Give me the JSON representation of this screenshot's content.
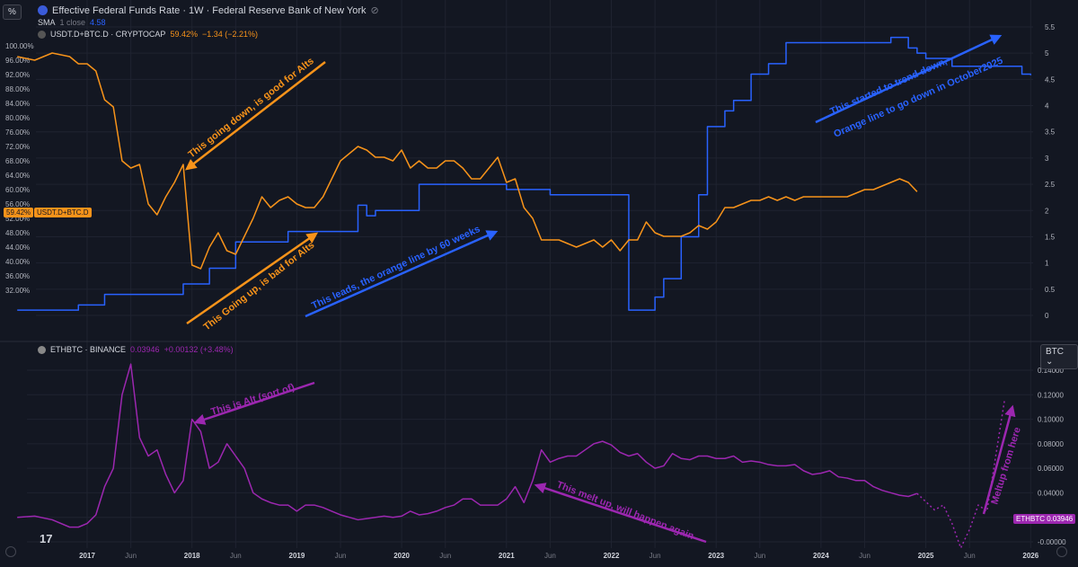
{
  "toolbar": {
    "scale_label": "%",
    "currency_label": "BTC"
  },
  "header": {
    "title": "Effective Federal Funds Rate · 1W · Federal Reserve Bank of New York",
    "sma_label": "SMA",
    "sma_params": "1 close",
    "sma_value": "4.58",
    "dominance_name": "USDT.D+BTC.D · CRYPTOCAP",
    "dominance_value": "59.42%",
    "dominance_change": "−1.34 (−2.21%)",
    "ethbtc_name": "ETHBTC · BINANCE",
    "ethbtc_value": "0.03946",
    "ethbtc_change": "+0.00132 (+3.48%)"
  },
  "badges": {
    "dominance_pct": "59.42%",
    "dominance_symbol": "USDT.D+BTC.D",
    "ethbtc": "ETHBTC 0.03946"
  },
  "colors": {
    "bg": "#131722",
    "orange": "#f7931a",
    "blue": "#2962ff",
    "purple": "#9c27b0",
    "grid": "#1f2330"
  },
  "chart_data": [
    {
      "type": "line",
      "title": "Effective Federal Funds Rate · 1W · Federal Reserve Bank of New York",
      "series": [
        {
          "name": "USDT.D+BTC.D · CRYPTOCAP",
          "axis": "left",
          "x": [
            "2016-05",
            "2016-07",
            "2016-09",
            "2016-11",
            "2016-12",
            "2017-01",
            "2017-02",
            "2017-03",
            "2017-04",
            "2017-05",
            "2017-06",
            "2017-07",
            "2017-08",
            "2017-09",
            "2017-10",
            "2017-11",
            "2017-12",
            "2018-01",
            "2018-02",
            "2018-03",
            "2018-04",
            "2018-05",
            "2018-06",
            "2018-07",
            "2018-08",
            "2018-09",
            "2018-10",
            "2018-11",
            "2018-12",
            "2019-01",
            "2019-02",
            "2019-03",
            "2019-04",
            "2019-05",
            "2019-06",
            "2019-07",
            "2019-08",
            "2019-09",
            "2019-10",
            "2019-11",
            "2019-12",
            "2020-01",
            "2020-02",
            "2020-03",
            "2020-04",
            "2020-05",
            "2020-06",
            "2020-07",
            "2020-08",
            "2020-09",
            "2020-10",
            "2020-11",
            "2020-12",
            "2021-01",
            "2021-02",
            "2021-03",
            "2021-04",
            "2021-05",
            "2021-06",
            "2021-07",
            "2021-08",
            "2021-09",
            "2021-10",
            "2021-11",
            "2021-12",
            "2022-01",
            "2022-02",
            "2022-03",
            "2022-04",
            "2022-05",
            "2022-06",
            "2022-07",
            "2022-08",
            "2022-09",
            "2022-10",
            "2022-11",
            "2022-12",
            "2023-01",
            "2023-02",
            "2023-03",
            "2023-04",
            "2023-05",
            "2023-06",
            "2023-07",
            "2023-08",
            "2023-09",
            "2023-10",
            "2023-11",
            "2023-12",
            "2024-01",
            "2024-02",
            "2024-03",
            "2024-04",
            "2024-05",
            "2024-06",
            "2024-07",
            "2024-08",
            "2024-09",
            "2024-10",
            "2024-11",
            "2024-12"
          ],
          "values": [
            97,
            96,
            98,
            97,
            95,
            95,
            93,
            85,
            83,
            68,
            66,
            67,
            56,
            53,
            58,
            62,
            67,
            39,
            38,
            44,
            48,
            43,
            42,
            47,
            52,
            58,
            55,
            57,
            58,
            56,
            55,
            55,
            58,
            63,
            68,
            70,
            72,
            71,
            69,
            69,
            68,
            71,
            66,
            68,
            66,
            66,
            68,
            68,
            66,
            63,
            63,
            66,
            69,
            62,
            63,
            55,
            52,
            46,
            46,
            46,
            45,
            44,
            45,
            46,
            44,
            46,
            43,
            46,
            46,
            51,
            48,
            47,
            47,
            47,
            48,
            50,
            49,
            51,
            55,
            55,
            56,
            57,
            57,
            58,
            57,
            58,
            57,
            58,
            58,
            58,
            58,
            58,
            58,
            59,
            60,
            60,
            61,
            62,
            63,
            62,
            59.42
          ]
        },
        {
          "name": "SMA",
          "axis": "right",
          "x": [
            "2016-05",
            "2016-12",
            "2017-03",
            "2017-06",
            "2017-12",
            "2018-03",
            "2018-06",
            "2018-09",
            "2018-12",
            "2019-08",
            "2019-09",
            "2019-10",
            "2020-03",
            "2020-03",
            "2021-01",
            "2021-06",
            "2022-03",
            "2022-05",
            "2022-06",
            "2022-07",
            "2022-09",
            "2022-11",
            "2022-12",
            "2023-02",
            "2023-03",
            "2023-05",
            "2023-07",
            "2023-09",
            "2024-09",
            "2024-11",
            "2024-12",
            "2025-01",
            "2025-04",
            "2025-12",
            "2026-01"
          ],
          "values": [
            0.1,
            0.2,
            0.4,
            0.4,
            0.6,
            0.9,
            1.4,
            1.4,
            1.6,
            2.1,
            1.9,
            2.0,
            2.3,
            2.5,
            2.4,
            2.3,
            0.1,
            0.1,
            0.35,
            0.7,
            1.5,
            2.3,
            3.6,
            3.9,
            4.1,
            4.6,
            4.8,
            5.2,
            5.3,
            5.1,
            5.0,
            4.9,
            4.75,
            4.6,
            4.58
          ]
        }
      ],
      "ylim_left": [
        32,
        100
      ],
      "ylim_right": [
        0,
        5.5
      ],
      "annotations": [
        "This going down, is good for Alts",
        "This Going up, is bad for Alts",
        "This leads,  the orange line by 60 weeks",
        "This started to trend down,",
        "Orange line to go down in October2025"
      ]
    },
    {
      "type": "line",
      "series": [
        {
          "name": "ETHBTC · BINANCE",
          "x": [
            "2016-05",
            "2016-07",
            "2016-09",
            "2016-11",
            "2016-12",
            "2017-01",
            "2017-02",
            "2017-03",
            "2017-04",
            "2017-05",
            "2017-06",
            "2017-07",
            "2017-08",
            "2017-09",
            "2017-10",
            "2017-11",
            "2017-12",
            "2018-01",
            "2018-02",
            "2018-03",
            "2018-04",
            "2018-05",
            "2018-06",
            "2018-07",
            "2018-08",
            "2018-09",
            "2018-10",
            "2018-11",
            "2018-12",
            "2019-01",
            "2019-02",
            "2019-03",
            "2019-04",
            "2019-05",
            "2019-06",
            "2019-07",
            "2019-08",
            "2019-09",
            "2019-10",
            "2019-11",
            "2019-12",
            "2020-01",
            "2020-02",
            "2020-03",
            "2020-04",
            "2020-05",
            "2020-06",
            "2020-07",
            "2020-08",
            "2020-09",
            "2020-10",
            "2020-11",
            "2020-12",
            "2021-01",
            "2021-02",
            "2021-03",
            "2021-04",
            "2021-05",
            "2021-06",
            "2021-07",
            "2021-08",
            "2021-09",
            "2021-10",
            "2021-11",
            "2021-12",
            "2022-01",
            "2022-02",
            "2022-03",
            "2022-04",
            "2022-05",
            "2022-06",
            "2022-07",
            "2022-08",
            "2022-09",
            "2022-10",
            "2022-11",
            "2022-12",
            "2023-01",
            "2023-02",
            "2023-03",
            "2023-04",
            "2023-05",
            "2023-06",
            "2023-07",
            "2023-08",
            "2023-09",
            "2023-10",
            "2023-11",
            "2023-12",
            "2024-01",
            "2024-02",
            "2024-03",
            "2024-04",
            "2024-05",
            "2024-06",
            "2024-07",
            "2024-08",
            "2024-09",
            "2024-10",
            "2024-11",
            "2024-12"
          ],
          "values": [
            0.02,
            0.021,
            0.018,
            0.012,
            0.012,
            0.015,
            0.022,
            0.045,
            0.06,
            0.12,
            0.145,
            0.085,
            0.07,
            0.075,
            0.055,
            0.04,
            0.05,
            0.1,
            0.09,
            0.06,
            0.065,
            0.08,
            0.07,
            0.06,
            0.04,
            0.035,
            0.032,
            0.03,
            0.03,
            0.025,
            0.03,
            0.03,
            0.028,
            0.025,
            0.022,
            0.02,
            0.018,
            0.019,
            0.02,
            0.021,
            0.02,
            0.021,
            0.025,
            0.022,
            0.023,
            0.025,
            0.028,
            0.03,
            0.035,
            0.035,
            0.03,
            0.03,
            0.03,
            0.035,
            0.045,
            0.032,
            0.05,
            0.075,
            0.065,
            0.068,
            0.07,
            0.07,
            0.075,
            0.08,
            0.082,
            0.079,
            0.073,
            0.07,
            0.072,
            0.065,
            0.06,
            0.062,
            0.072,
            0.068,
            0.067,
            0.07,
            0.07,
            0.068,
            0.068,
            0.07,
            0.065,
            0.066,
            0.065,
            0.063,
            0.062,
            0.062,
            0.063,
            0.058,
            0.055,
            0.056,
            0.058,
            0.053,
            0.052,
            0.05,
            0.05,
            0.045,
            0.042,
            0.04,
            0.038,
            0.037,
            0.03946
          ]
        },
        {
          "name": "projection",
          "dashed": true,
          "x": [
            "2024-12",
            "2025-02",
            "2025-03",
            "2025-04",
            "2025-05",
            "2025-06",
            "2025-07",
            "2025-08",
            "2025-09",
            "2025-10"
          ],
          "values": [
            0.03946,
            0.026,
            0.03,
            0.015,
            -0.005,
            0.01,
            0.03,
            0.025,
            0.07,
            0.115
          ]
        }
      ],
      "ylim": [
        -0.005,
        0.15
      ],
      "y_ticks": [
        -0.0,
        0.02,
        0.04,
        0.06,
        0.08,
        0.1,
        0.12,
        0.14
      ],
      "annotations": [
        "This is Alt (sort of)",
        "This melt up, will happen again",
        "Meltup from here"
      ]
    }
  ],
  "x_axis": {
    "labels": [
      "2017",
      "Jun",
      "2018",
      "Jun",
      "2019",
      "Jun",
      "2020",
      "Jun",
      "2021",
      "Jun",
      "2022",
      "Jun",
      "2023",
      "Jun",
      "2024",
      "Jun",
      "2025",
      "Jun",
      "2026"
    ],
    "positions": [
      "2017-01",
      "2017-06",
      "2018-01",
      "2018-06",
      "2019-01",
      "2019-06",
      "2020-01",
      "2020-06",
      "2021-01",
      "2021-06",
      "2022-01",
      "2022-06",
      "2023-01",
      "2023-06",
      "2024-01",
      "2024-06",
      "2025-01",
      "2025-06",
      "2026-01"
    ]
  },
  "left_axis_ticks": [
    "100.00%",
    "96.00%",
    "92.00%",
    "88.00%",
    "84.00%",
    "80.00%",
    "76.00%",
    "72.00%",
    "68.00%",
    "64.00%",
    "60.00%",
    "56.00%",
    "52.00%",
    "48.00%",
    "44.00%",
    "40.00%",
    "36.00%",
    "32.00%"
  ],
  "right_axis_ticks": [
    "5.5",
    "5",
    "4.5",
    "4",
    "3.5",
    "3",
    "2.5",
    "2",
    "1.5",
    "1",
    "0.5",
    "0"
  ]
}
